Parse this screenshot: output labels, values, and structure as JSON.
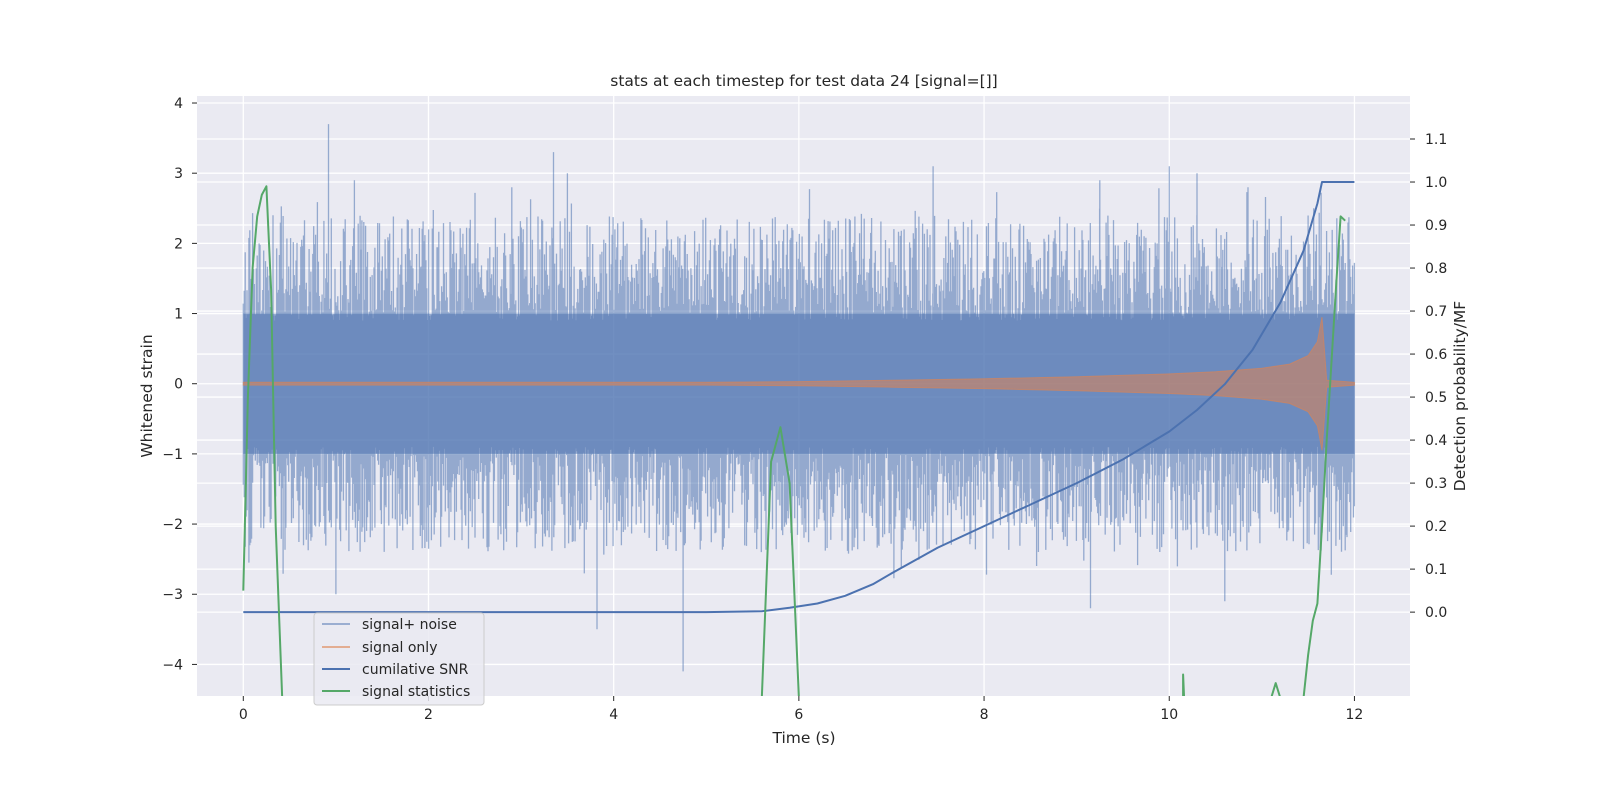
{
  "chart_data": {
    "type": "line",
    "title": "stats at each timestep for test data 24 [signal=[]]",
    "xlabel": "Time (s)",
    "ylabel": "Whitened strain",
    "y2label": "Detection probability/MF",
    "xlim": [
      -0.5,
      12.6
    ],
    "ylim": [
      -4.45,
      4.1
    ],
    "y2lim": [
      -0.195,
      1.2
    ],
    "xticks": [
      0,
      2,
      4,
      6,
      8,
      10,
      12
    ],
    "yticks": [
      4,
      3,
      2,
      1,
      0,
      -1,
      -2,
      -3,
      -4
    ],
    "ytick_labels": [
      "4",
      "3",
      "2",
      "1",
      "0",
      "−1",
      "−2",
      "−3",
      "−4"
    ],
    "y2ticks": [
      1.1,
      1.0,
      0.9,
      0.8,
      0.7,
      0.6,
      0.5,
      0.4,
      0.3,
      0.2,
      0.1,
      0.0
    ],
    "y2tick_labels": [
      "1.1",
      "1.0",
      "0.9",
      "0.8",
      "0.7",
      "0.6",
      "0.5",
      "0.4",
      "0.3",
      "0.2",
      "0.1",
      "0.0"
    ],
    "grid": true,
    "legend_position": "lower-left",
    "colors": {
      "background": "#eaeaf2",
      "grid": "#ffffff",
      "signal_noise": "#4c72b0",
      "signal_only": "#dd8452",
      "cumulative_snr": "#4c72b0",
      "signal_statistics": "#55a868"
    },
    "series": [
      {
        "name": "signal+ noise",
        "axis": "left",
        "style": "dense-noise",
        "x_range": [
          0,
          12
        ],
        "typical_upper": [
          0.9,
          2.4
        ],
        "typical_lower": [
          -0.9,
          -2.4
        ],
        "peaks": [
          {
            "x": 0.92,
            "y": 3.7
          },
          {
            "x": 1.2,
            "y": 2.9
          },
          {
            "x": 2.9,
            "y": 2.8
          },
          {
            "x": 3.35,
            "y": 3.3
          },
          {
            "x": 3.5,
            "y": 3.0
          },
          {
            "x": 7.45,
            "y": 3.1
          },
          {
            "x": 9.25,
            "y": 2.9
          },
          {
            "x": 10.0,
            "y": 3.1
          },
          {
            "x": 10.3,
            "y": 3.0
          },
          {
            "x": 10.85,
            "y": 2.8
          },
          {
            "x": 3.82,
            "y": -3.5
          },
          {
            "x": 4.75,
            "y": -4.1
          },
          {
            "x": 1.0,
            "y": -3.0
          },
          {
            "x": 9.15,
            "y": -3.2
          },
          {
            "x": 10.6,
            "y": -3.1
          }
        ]
      },
      {
        "name": "signal only",
        "axis": "left",
        "style": "chirp",
        "x_range": [
          0,
          12
        ],
        "envelope": {
          "x": [
            0,
            5,
            6,
            7,
            8,
            9,
            10,
            10.5,
            11,
            11.3,
            11.5,
            11.6,
            11.65,
            11.7,
            12
          ],
          "y": [
            0.02,
            0.02,
            0.03,
            0.05,
            0.07,
            0.1,
            0.14,
            0.17,
            0.22,
            0.28,
            0.4,
            0.6,
            0.95,
            0.05,
            0.02
          ]
        }
      },
      {
        "name": "cumilative SNR",
        "axis": "right",
        "style": "line",
        "x": [
          0,
          5,
          5.6,
          5.9,
          6.2,
          6.5,
          6.8,
          7,
          7.5,
          8,
          8.5,
          9,
          9.5,
          10,
          10.3,
          10.6,
          10.9,
          11.2,
          11.45,
          11.6,
          11.65,
          12
        ],
        "values": [
          0,
          0,
          0.002,
          0.01,
          0.02,
          0.038,
          0.065,
          0.09,
          0.15,
          0.2,
          0.25,
          0.3,
          0.355,
          0.42,
          0.47,
          0.53,
          0.61,
          0.72,
          0.84,
          0.95,
          1.0,
          1.0
        ]
      },
      {
        "name": "signal statistics",
        "axis": "right",
        "style": "line",
        "x": [
          0,
          0.05,
          0.1,
          0.15,
          0.2,
          0.25,
          0.3,
          0.35,
          0.42,
          5.6,
          5.7,
          5.8,
          5.9,
          6.0,
          10.15,
          10.15,
          10.16,
          11.1,
          11.15,
          11.2,
          11.45,
          11.5,
          11.55,
          11.6,
          11.65,
          11.7,
          11.8,
          11.85,
          11.9
        ],
        "values": [
          0.05,
          0.5,
          0.8,
          0.92,
          0.97,
          0.99,
          0.75,
          0.2,
          -0.2,
          -0.2,
          0.35,
          0.43,
          0.3,
          -0.2,
          -0.2,
          -0.145,
          -0.2,
          -0.2,
          -0.165,
          -0.2,
          -0.2,
          -0.1,
          -0.02,
          0.02,
          0.2,
          0.4,
          0.75,
          0.92,
          0.91
        ]
      }
    ]
  }
}
